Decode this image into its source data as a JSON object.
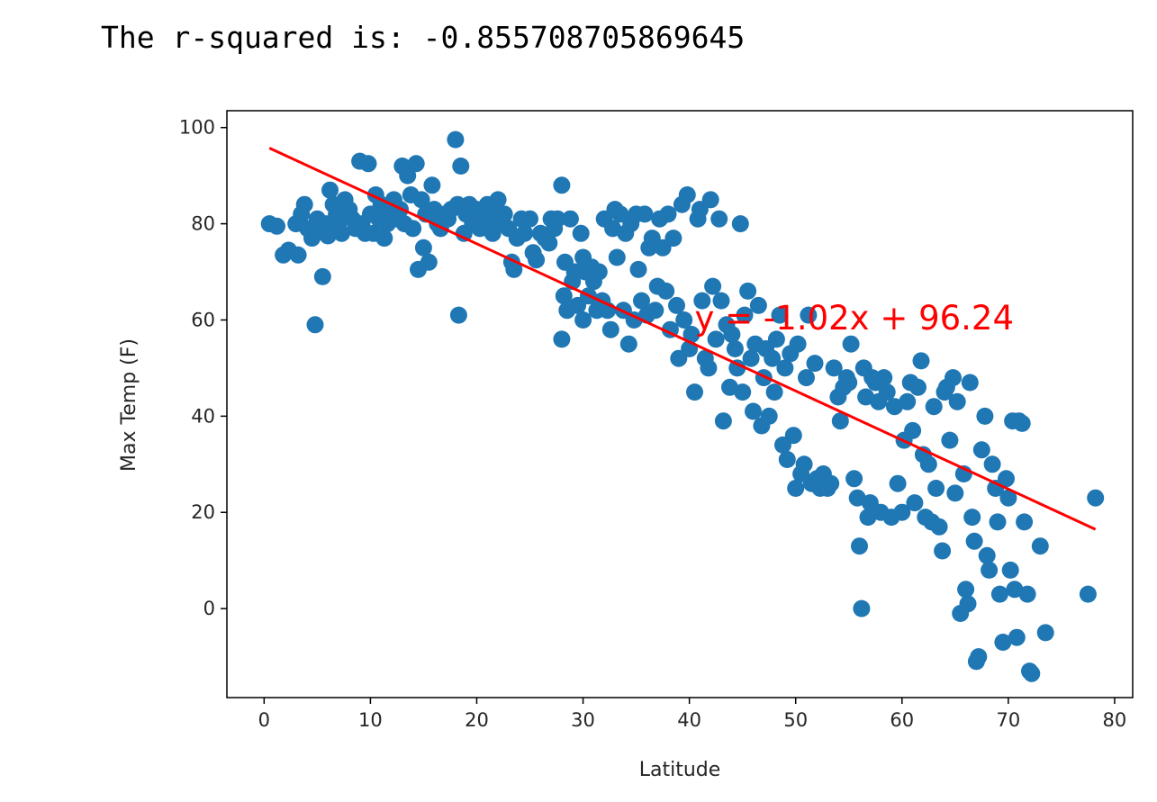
{
  "output": {
    "text": "The r-squared is: -0.8557087058696​45"
  },
  "chart_data": {
    "type": "scatter",
    "title": "",
    "xlabel": "Latitude",
    "ylabel": "Max Temp (F)",
    "xlim": [
      -3.5,
      81.7
    ],
    "ylim": [
      -18.5,
      103.5
    ],
    "xticks": [
      0,
      10,
      20,
      30,
      40,
      50,
      60,
      70,
      80
    ],
    "yticks": [
      0,
      20,
      40,
      60,
      80,
      100
    ],
    "grid": false,
    "legend": "none",
    "point_color": "#1f77b4",
    "regression": {
      "slope": -1.02,
      "intercept": 96.24,
      "x_range": [
        0.5,
        78.2
      ],
      "color": "#ff0000",
      "label": "y = -1.02x + 96.24",
      "label_at": [
        40.5,
        60.5
      ]
    },
    "points": [
      [
        0.5,
        80
      ],
      [
        1.2,
        79.5
      ],
      [
        1.8,
        73.5
      ],
      [
        2.3,
        74.5
      ],
      [
        3,
        80
      ],
      [
        3.2,
        73.5
      ],
      [
        3.5,
        82
      ],
      [
        3.8,
        84
      ],
      [
        4.1,
        79
      ],
      [
        4.5,
        77
      ],
      [
        4.8,
        59
      ],
      [
        5,
        81
      ],
      [
        5.3,
        79
      ],
      [
        5.5,
        69
      ],
      [
        5.8,
        80
      ],
      [
        6,
        77.5
      ],
      [
        6.2,
        87
      ],
      [
        6.5,
        84
      ],
      [
        6.8,
        82
      ],
      [
        7,
        80
      ],
      [
        7.3,
        78
      ],
      [
        7.6,
        85
      ],
      [
        8,
        83
      ],
      [
        8.3,
        81
      ],
      [
        8.6,
        79
      ],
      [
        9,
        93
      ],
      [
        9.2,
        80
      ],
      [
        9.5,
        78
      ],
      [
        9.8,
        92.5
      ],
      [
        10,
        82
      ],
      [
        10.3,
        78
      ],
      [
        10.5,
        86
      ],
      [
        10.8,
        81
      ],
      [
        11,
        84
      ],
      [
        11.3,
        77
      ],
      [
        11.6,
        80
      ],
      [
        12,
        82
      ],
      [
        12.2,
        85
      ],
      [
        12.5,
        81
      ],
      [
        12.8,
        83
      ],
      [
        13,
        92
      ],
      [
        13.2,
        80
      ],
      [
        13.5,
        90
      ],
      [
        13.8,
        86
      ],
      [
        14,
        79
      ],
      [
        14.3,
        92.5
      ],
      [
        14.5,
        70.5
      ],
      [
        14.8,
        85
      ],
      [
        15,
        75
      ],
      [
        15.2,
        82
      ],
      [
        15.5,
        72
      ],
      [
        15.8,
        88
      ],
      [
        16,
        83
      ],
      [
        16.3,
        80
      ],
      [
        16.6,
        79
      ],
      [
        17,
        82
      ],
      [
        17.3,
        81
      ],
      [
        17.6,
        83
      ],
      [
        18,
        97.5
      ],
      [
        18.2,
        84
      ],
      [
        18.3,
        61
      ],
      [
        18.5,
        92
      ],
      [
        18.8,
        78
      ],
      [
        19,
        82
      ],
      [
        19.3,
        84
      ],
      [
        19.6,
        80
      ],
      [
        20,
        83
      ],
      [
        20.3,
        79
      ],
      [
        20.6,
        82
      ],
      [
        21,
        84
      ],
      [
        21.3,
        81
      ],
      [
        21.5,
        78
      ],
      [
        21.8,
        83
      ],
      [
        22,
        85
      ],
      [
        22.3,
        80
      ],
      [
        22.6,
        82
      ],
      [
        23,
        79
      ],
      [
        23.3,
        72
      ],
      [
        23.5,
        70.5
      ],
      [
        23.8,
        77
      ],
      [
        24.2,
        81
      ],
      [
        24.5,
        78
      ],
      [
        25,
        81
      ],
      [
        25.3,
        74
      ],
      [
        25.6,
        72.5
      ],
      [
        26,
        78
      ],
      [
        26.4,
        77
      ],
      [
        26.8,
        76
      ],
      [
        27,
        81
      ],
      [
        27.3,
        79
      ],
      [
        27.6,
        81
      ],
      [
        28,
        56
      ],
      [
        28,
        88
      ],
      [
        28.2,
        65
      ],
      [
        28.3,
        72
      ],
      [
        28.5,
        62
      ],
      [
        28.8,
        81
      ],
      [
        29,
        68
      ],
      [
        29.2,
        70
      ],
      [
        29.5,
        63
      ],
      [
        29.8,
        78
      ],
      [
        30,
        60
      ],
      [
        30,
        73
      ],
      [
        30.2,
        70
      ],
      [
        30.5,
        65
      ],
      [
        30.8,
        71
      ],
      [
        31,
        68
      ],
      [
        31.3,
        62
      ],
      [
        31.5,
        70
      ],
      [
        31.8,
        64
      ],
      [
        32,
        81
      ],
      [
        32.3,
        62
      ],
      [
        32.6,
        58
      ],
      [
        32.8,
        79
      ],
      [
        33,
        83
      ],
      [
        33.2,
        73
      ],
      [
        33.5,
        82
      ],
      [
        33.8,
        62
      ],
      [
        34,
        78
      ],
      [
        34.3,
        55
      ],
      [
        34.5,
        80
      ],
      [
        34.8,
        60
      ],
      [
        35,
        82
      ],
      [
        35.2,
        70.5
      ],
      [
        35.5,
        64
      ],
      [
        35.8,
        82
      ],
      [
        36,
        61
      ],
      [
        36.2,
        75
      ],
      [
        36.5,
        77
      ],
      [
        36.8,
        62
      ],
      [
        37,
        67
      ],
      [
        37.2,
        81
      ],
      [
        37.5,
        75
      ],
      [
        37.8,
        66
      ],
      [
        38,
        82
      ],
      [
        38.2,
        58
      ],
      [
        38.5,
        77
      ],
      [
        38.8,
        63
      ],
      [
        39,
        52
      ],
      [
        39.3,
        84
      ],
      [
        39.5,
        60
      ],
      [
        39.8,
        86
      ],
      [
        40,
        54
      ],
      [
        40.2,
        57
      ],
      [
        40.5,
        45
      ],
      [
        40.8,
        81
      ],
      [
        41,
        83
      ],
      [
        41.2,
        64
      ],
      [
        41.5,
        52
      ],
      [
        41.8,
        50
      ],
      [
        42,
        85
      ],
      [
        42.2,
        67
      ],
      [
        42.5,
        56
      ],
      [
        42.8,
        81
      ],
      [
        43,
        64
      ],
      [
        43.2,
        39
      ],
      [
        43.5,
        59
      ],
      [
        43.8,
        46
      ],
      [
        44,
        57
      ],
      [
        44.3,
        54
      ],
      [
        44.5,
        50
      ],
      [
        44.8,
        80
      ],
      [
        45,
        45
      ],
      [
        45.2,
        61
      ],
      [
        45.5,
        66
      ],
      [
        45.8,
        52
      ],
      [
        46,
        41
      ],
      [
        46.2,
        55
      ],
      [
        46.5,
        63
      ],
      [
        46.8,
        38
      ],
      [
        47,
        48
      ],
      [
        47.2,
        54
      ],
      [
        47.5,
        40
      ],
      [
        47.8,
        52
      ],
      [
        48,
        45
      ],
      [
        48.2,
        56
      ],
      [
        48.5,
        61
      ],
      [
        48.8,
        34
      ],
      [
        49,
        50
      ],
      [
        49.2,
        31
      ],
      [
        49.5,
        53
      ],
      [
        49.8,
        36
      ],
      [
        50,
        25
      ],
      [
        50.2,
        55
      ],
      [
        50.5,
        28
      ],
      [
        50.8,
        30
      ],
      [
        51,
        48
      ],
      [
        51.2,
        61
      ],
      [
        51.5,
        26
      ],
      [
        51.8,
        51
      ],
      [
        52,
        27
      ],
      [
        52.3,
        25
      ],
      [
        52.6,
        28
      ],
      [
        53,
        25
      ],
      [
        53.3,
        26
      ],
      [
        53.6,
        50
      ],
      [
        54,
        44
      ],
      [
        54.2,
        39
      ],
      [
        54.5,
        46
      ],
      [
        54.8,
        48
      ],
      [
        55,
        47
      ],
      [
        55.2,
        55
      ],
      [
        55.5,
        27
      ],
      [
        55.8,
        23
      ],
      [
        56,
        13
      ],
      [
        56.2,
        0
      ],
      [
        56.4,
        50
      ],
      [
        56.6,
        44
      ],
      [
        56.8,
        19
      ],
      [
        57,
        22
      ],
      [
        57.2,
        48
      ],
      [
        57.5,
        47
      ],
      [
        57.8,
        43
      ],
      [
        58,
        20
      ],
      [
        58.3,
        48
      ],
      [
        58.6,
        45
      ],
      [
        59,
        19
      ],
      [
        59.3,
        42
      ],
      [
        59.6,
        26
      ],
      [
        60,
        20
      ],
      [
        60.2,
        35
      ],
      [
        60.5,
        43
      ],
      [
        60.8,
        47
      ],
      [
        61,
        37
      ],
      [
        61.2,
        22
      ],
      [
        61.5,
        46
      ],
      [
        61.8,
        51.5
      ],
      [
        62,
        32
      ],
      [
        62.2,
        19
      ],
      [
        62.5,
        30
      ],
      [
        62.8,
        18
      ],
      [
        63,
        42
      ],
      [
        63.2,
        25
      ],
      [
        63.5,
        17
      ],
      [
        63.8,
        12
      ],
      [
        64,
        45
      ],
      [
        64.2,
        46
      ],
      [
        64.5,
        35
      ],
      [
        64.8,
        48
      ],
      [
        65,
        24
      ],
      [
        65.2,
        43
      ],
      [
        65.5,
        -1
      ],
      [
        65.8,
        28
      ],
      [
        66,
        4
      ],
      [
        66.2,
        1
      ],
      [
        66.4,
        47
      ],
      [
        66.6,
        19
      ],
      [
        66.8,
        14
      ],
      [
        67,
        -11
      ],
      [
        67.2,
        -10
      ],
      [
        67.5,
        33
      ],
      [
        67.8,
        40
      ],
      [
        68,
        11
      ],
      [
        68.2,
        8
      ],
      [
        68.5,
        30
      ],
      [
        68.8,
        25
      ],
      [
        69,
        18
      ],
      [
        69.2,
        3
      ],
      [
        69.5,
        -7
      ],
      [
        69.8,
        27
      ],
      [
        70,
        23
      ],
      [
        70.2,
        8
      ],
      [
        70.4,
        39
      ],
      [
        70.6,
        4
      ],
      [
        70.8,
        -6
      ],
      [
        71,
        39
      ],
      [
        71.3,
        38.5
      ],
      [
        71.5,
        18
      ],
      [
        71.8,
        3
      ],
      [
        72,
        -13
      ],
      [
        72.2,
        -13.5
      ],
      [
        73,
        13
      ],
      [
        73.5,
        -5
      ],
      [
        77.5,
        3
      ],
      [
        78.2,
        23
      ]
    ]
  }
}
